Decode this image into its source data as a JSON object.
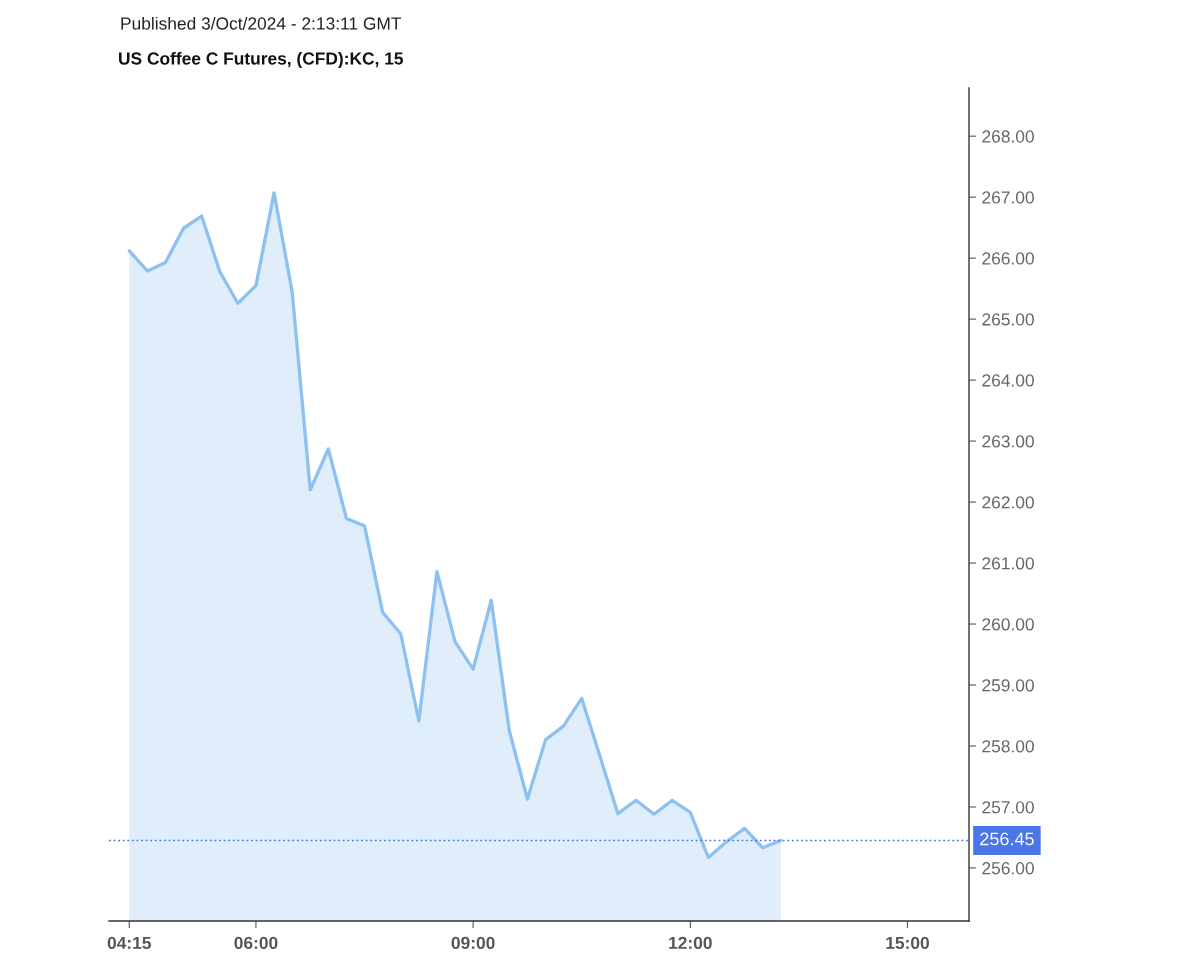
{
  "chart_data": {
    "type": "area",
    "title": "US Coffee C Futures, (CFD):KC, 15",
    "annotations": [
      "Published 3/Oct/2024 - 2:13:11 GMT"
    ],
    "x": [
      4.25,
      4.5,
      4.75,
      5,
      5.25,
      5.5,
      5.75,
      6,
      6.25,
      6.5,
      6.75,
      7,
      7.25,
      7.5,
      7.75,
      8,
      8.25,
      8.5,
      8.75,
      9,
      9.25,
      9.5,
      9.75,
      10,
      10.25,
      10.5,
      10.75,
      11,
      11.25,
      11.5,
      11.75,
      12,
      12.25,
      12.5,
      12.75,
      13,
      13.25
    ],
    "series": [
      {
        "color": "#8ec1ef",
        "values": [
          266.12,
          265.79,
          265.93,
          266.49,
          266.69,
          265.78,
          265.26,
          265.55,
          267.07,
          265.45,
          262.2,
          262.87,
          261.73,
          261.61,
          260.19,
          259.84,
          258.41,
          260.86,
          259.71,
          259.26,
          260.39,
          258.25,
          257.13,
          258.1,
          258.33,
          258.78,
          257.84,
          256.89,
          257.11,
          256.88,
          257.11,
          256.91,
          256.17,
          256.43,
          256.65,
          256.33,
          256.45
        ]
      }
    ],
    "xlim": [
      3.97,
      15.85
    ],
    "xticks": [
      {
        "value": 4.25,
        "label": "04:15"
      },
      {
        "value": 6,
        "label": "06:00"
      },
      {
        "value": 9,
        "label": "09:00"
      },
      {
        "value": 12,
        "label": "12:00"
      },
      {
        "value": 15,
        "label": "15:00"
      }
    ],
    "ylim": [
      255.13,
      268.79
    ],
    "yticks": [
      {
        "value": 256,
        "label": "256.00"
      },
      {
        "value": 257,
        "label": "257.00"
      },
      {
        "value": 258,
        "label": "258.00"
      },
      {
        "value": 259,
        "label": "259.00"
      },
      {
        "value": 260,
        "label": "260.00"
      },
      {
        "value": 261,
        "label": "261.00"
      },
      {
        "value": 262,
        "label": "262.00"
      },
      {
        "value": 263,
        "label": "263.00"
      },
      {
        "value": 264,
        "label": "264.00"
      },
      {
        "value": 265,
        "label": "265.00"
      },
      {
        "value": 266,
        "label": "266.00"
      },
      {
        "value": 267,
        "label": "267.00"
      },
      {
        "value": 268,
        "label": "268.00"
      }
    ],
    "ref_lines": [
      {
        "axis": "y",
        "value": 256.45,
        "label": "256.45",
        "color": "#4a76e8",
        "line_style": "dotted"
      }
    ]
  }
}
